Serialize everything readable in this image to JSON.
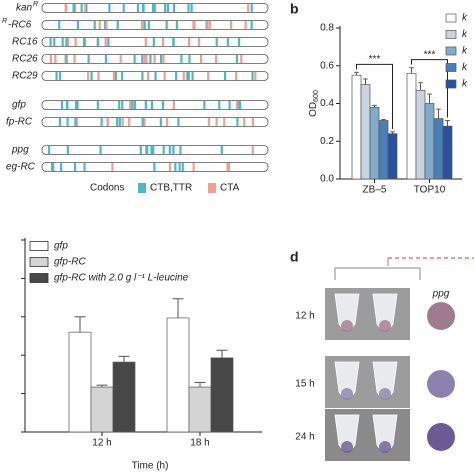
{
  "panel_a": {
    "rows": [
      {
        "label": "kan",
        "sup": "R"
      },
      {
        "sup": "R",
        "label": "-RC6"
      },
      {
        "label": "RC16"
      },
      {
        "label": "RC26"
      },
      {
        "label": "RC29"
      },
      {
        "label": "gfp"
      },
      {
        "label": "fp-RC"
      },
      {
        "label": "ppg"
      },
      {
        "label": "eg-RC"
      }
    ],
    "legend": {
      "title": "Codons",
      "items": [
        {
          "name": "CTB,TTR",
          "color": "#4fb8c8"
        },
        {
          "name": "CTA",
          "color": "#f0a090"
        }
      ]
    }
  },
  "chart_data": [
    {
      "type": "bar",
      "panel": "b",
      "ylabel": "OD",
      "ylabel_sub": "600",
      "categories": [
        "ZB–5",
        "TOP10"
      ],
      "series": [
        {
          "name": "k",
          "color": "#ffffff",
          "values": [
            0.55,
            0.56
          ],
          "errors": [
            0.015,
            0.03
          ]
        },
        {
          "name": "k",
          "color": "#c8d4e2",
          "values": [
            0.5,
            0.47
          ],
          "errors": [
            0.03,
            0.04
          ]
        },
        {
          "name": "k",
          "color": "#82aacb",
          "values": [
            0.38,
            0.4
          ],
          "errors": [
            0.01,
            0.05
          ]
        },
        {
          "name": "k",
          "color": "#4a80b8",
          "values": [
            0.31,
            0.32
          ],
          "errors": [
            0.005,
            0.05
          ]
        },
        {
          "name": "k",
          "color": "#2b509c",
          "values": [
            0.24,
            0.28
          ],
          "errors": [
            0.01,
            0.03
          ]
        }
      ],
      "annotations": [
        "***",
        "***"
      ],
      "ylim": [
        0,
        0.8
      ],
      "yticks": [
        {
          "value": 0,
          "label": "0.0"
        },
        0.2,
        0.4,
        0.6,
        0.8
      ],
      "show_tick_labels": true
    },
    {
      "type": "bar",
      "panel": "c",
      "xlabel": "Time (h)",
      "categories": [
        "12 h",
        "18 h"
      ],
      "series": [
        {
          "name": "gfp",
          "color": "#ffffff",
          "values": [
            2.6,
            2.97
          ],
          "errors": [
            0.4,
            0.5
          ]
        },
        {
          "name": "gfp-RC",
          "color": "#d4d4d4",
          "values": [
            1.17,
            1.17
          ],
          "errors": [
            0.05,
            0.12
          ]
        },
        {
          "name": "gfp-RC with 2.0 g l⁻¹ L-leucine",
          "color": "#474747",
          "values": [
            1.82,
            1.93
          ],
          "errors": [
            0.15,
            0.2
          ]
        }
      ],
      "ylim": [
        0,
        5
      ],
      "yticks": [
        0,
        1,
        2,
        3,
        4,
        5
      ],
      "show_tick_labels": false
    }
  ],
  "panel_d": {
    "label": "d",
    "column": "ppg",
    "rows": [
      {
        "time": "12 h",
        "color": "#a07b90"
      },
      {
        "time": "15 h",
        "color": "#8c82ad"
      },
      {
        "time": "24 h",
        "color": "#6c5a92"
      }
    ]
  }
}
